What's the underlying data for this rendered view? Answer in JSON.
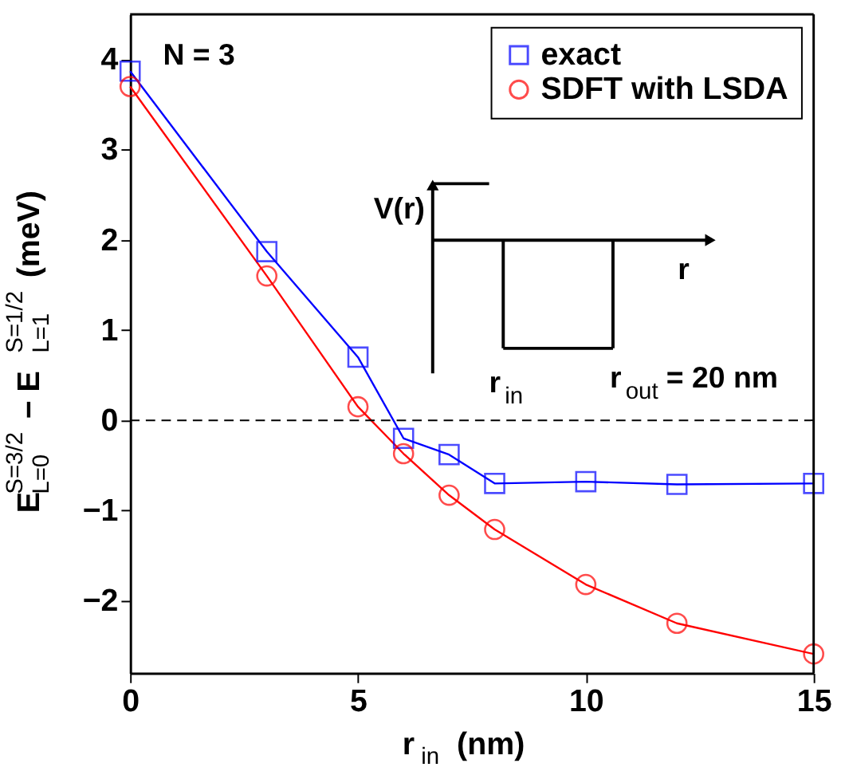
{
  "chart_data": {
    "type": "line",
    "xlabel": "r$_{in}$ (nm)",
    "ylabel": "E$_{L=0}$$^{S=3/2}$ − E$_{L=1}$$^{S=1/2}$ (meV)",
    "x": [
      0,
      3,
      5,
      6,
      7,
      8,
      10,
      12,
      15
    ],
    "series": [
      {
        "name": "exact",
        "color": "#0000ff",
        "marker": "square",
        "values": [
          3.87,
          1.87,
          0.7,
          -0.2,
          -0.38,
          -0.7,
          -0.68,
          -0.71,
          -0.7
        ]
      },
      {
        "name": "SDFT with LSDA",
        "color": "#ff0000",
        "marker": "circle",
        "values": [
          3.7,
          1.6,
          0.15,
          -0.37,
          -0.83,
          -1.21,
          -1.82,
          -2.25,
          -2.59
        ]
      }
    ],
    "xlim": [
      0,
      15
    ],
    "xticks": [
      0,
      5,
      10,
      15
    ],
    "ylim": [
      -2.8,
      4.5
    ],
    "yticks": [
      -2,
      -1,
      0,
      1,
      2,
      3,
      4
    ],
    "ref_lines": [
      {
        "axis": "y",
        "value": 0,
        "color": "#000000",
        "line_style": "dashed"
      }
    ],
    "annotations": [
      "N = 3",
      "V(r)",
      "r",
      "r$_{in}$",
      "r$_{out}$ = 20 nm"
    ],
    "legend": "top right",
    "grid": false,
    "line_style": "solid"
  }
}
